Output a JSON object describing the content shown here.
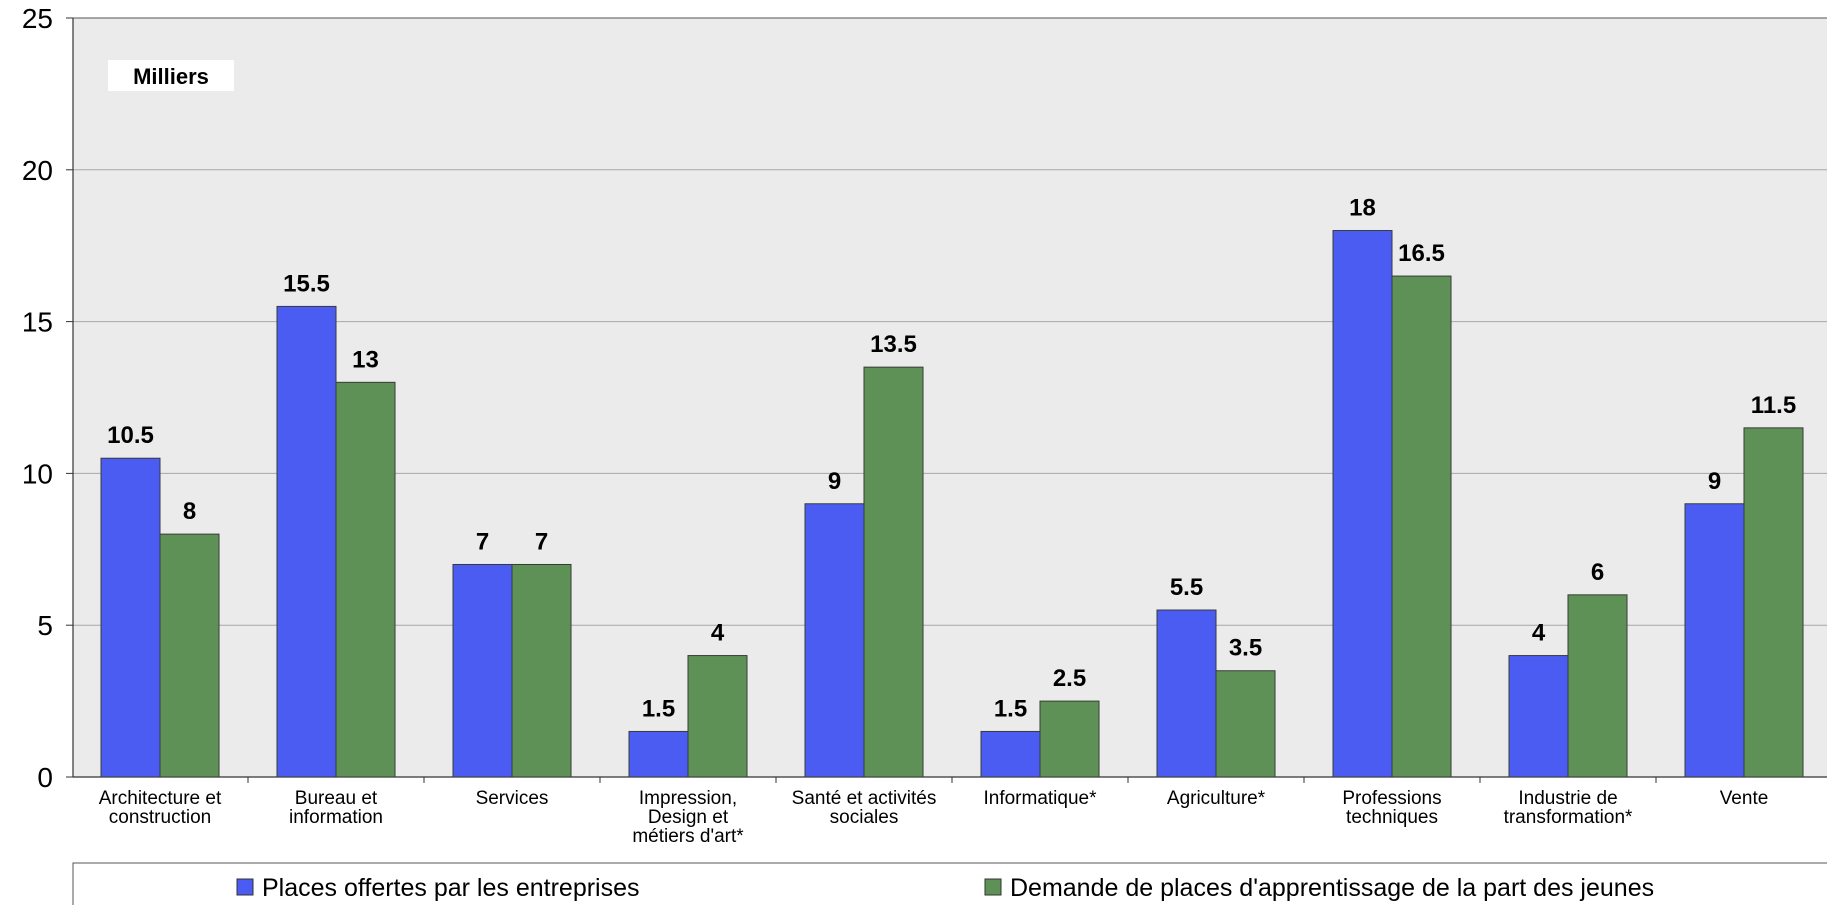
{
  "chart_data": {
    "type": "bar",
    "unit_label": "Milliers",
    "categories": [
      [
        "Architecture et",
        "construction"
      ],
      [
        "Bureau et",
        "information"
      ],
      [
        "Services"
      ],
      [
        "Impression,",
        "Design et",
        "métiers d'art*"
      ],
      [
        "Santé et activités",
        "sociales"
      ],
      [
        "Informatique*"
      ],
      [
        "Agriculture*"
      ],
      [
        "Professions",
        "techniques"
      ],
      [
        "Industrie de",
        "transformation*"
      ],
      [
        "Vente"
      ]
    ],
    "series": [
      {
        "name": "Places offertes par les entreprises",
        "color": "#4a5cf2",
        "values": [
          10.5,
          15.5,
          7,
          1.5,
          9,
          1.5,
          5.5,
          18,
          4,
          9
        ]
      },
      {
        "name": "Demande de places d'apprentissage de la part des jeunes",
        "color": "#5d9156",
        "values": [
          8,
          13,
          7,
          4,
          13.5,
          2.5,
          3.5,
          16.5,
          6,
          11.5
        ]
      }
    ],
    "data_labels": [
      [
        "10.5",
        "15.5",
        "7",
        "1.5",
        "9",
        "1.5",
        "5.5",
        "18",
        "4",
        "9"
      ],
      [
        "8",
        "13",
        "7",
        "4",
        "13.5",
        "2.5",
        "3.5",
        "16.5",
        "6",
        "11.5"
      ]
    ],
    "ylim": [
      0,
      25
    ],
    "yticks": [
      0,
      5,
      10,
      15,
      20,
      25
    ],
    "ytick_labels": [
      "0",
      "5",
      "10",
      "15",
      "20",
      "25"
    ],
    "grid": true,
    "plot_background": "#ebebeb",
    "legend_position": "bottom"
  }
}
